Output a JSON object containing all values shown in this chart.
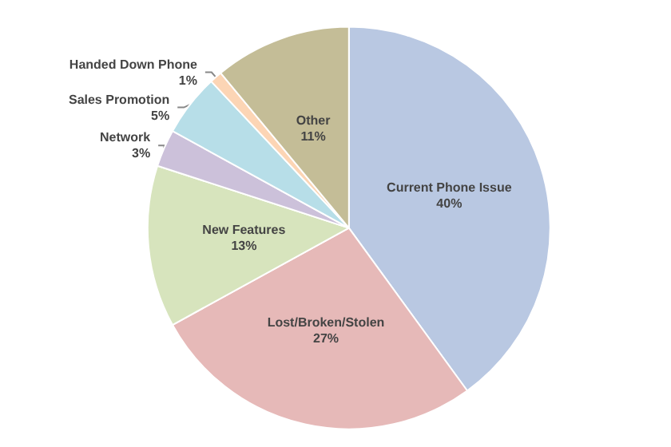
{
  "chart_data": {
    "type": "pie",
    "categories": [
      "Current Phone Issue",
      "Lost/Broken/Stolen",
      "New Features",
      "Network",
      "Sales Promotion",
      "Handed Down Phone",
      "Other"
    ],
    "values": [
      40,
      27,
      13,
      3,
      5,
      1,
      11
    ],
    "value_labels": [
      "40%",
      "27%",
      "13%",
      "3%",
      "5%",
      "1%",
      "11%"
    ],
    "colors": [
      "#b9c8e2",
      "#e6b9b8",
      "#d7e4bd",
      "#ccc1da",
      "#b7dee8",
      "#fcd5b5",
      "#c4bd97"
    ],
    "legend": false
  }
}
